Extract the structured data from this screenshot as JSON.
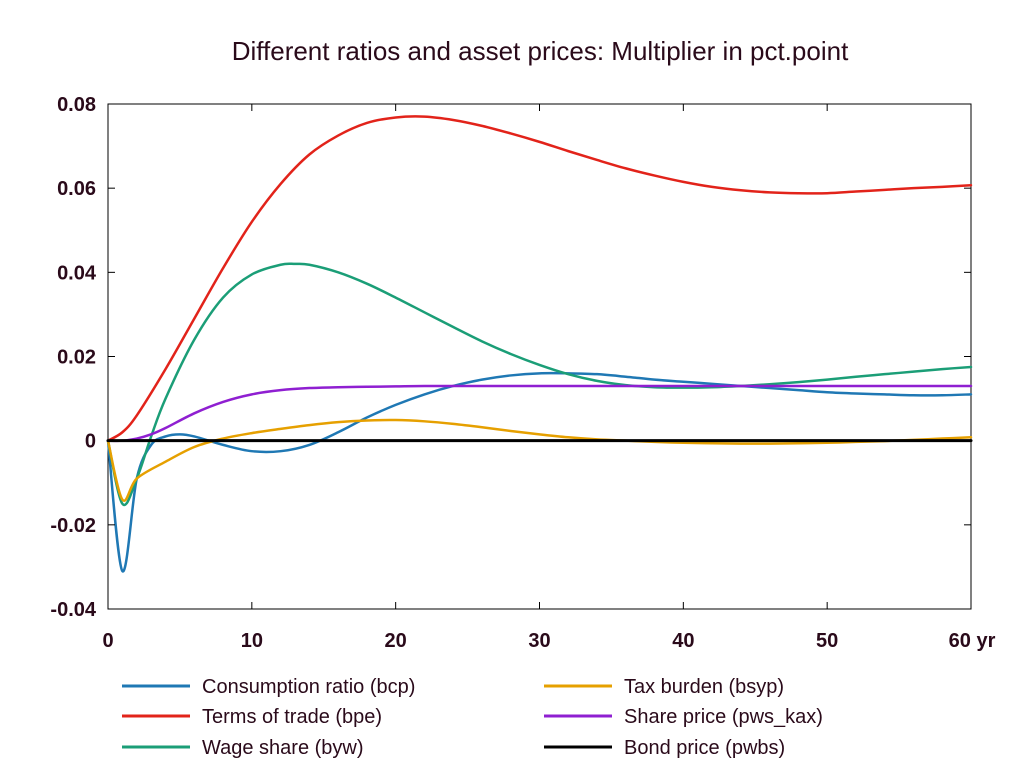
{
  "chart_data": {
    "type": "line",
    "title": "Different ratios and asset prices: Multiplier in pct.point",
    "xlabel": "",
    "ylabel": "",
    "xlim": [
      0,
      60
    ],
    "ylim": [
      -0.04,
      0.08
    ],
    "x_ticks": [
      0,
      10,
      20,
      30,
      40,
      50,
      60
    ],
    "x_tick_labels": [
      "0",
      "10",
      "20",
      "30",
      "40",
      "50",
      "60 yr"
    ],
    "y_ticks": [
      -0.04,
      -0.02,
      0,
      0.02,
      0.04,
      0.06,
      0.08
    ],
    "y_tick_labels": [
      "-0.04",
      "-0.02",
      "0",
      "0.02",
      "0.04",
      "0.06",
      "0.08"
    ],
    "grid": false,
    "legend_position": "bottom",
    "series": [
      {
        "name": "Consumption ratio (bcp)",
        "color": "#1f78b4",
        "x": [
          0,
          1,
          2,
          3,
          4,
          5,
          6,
          8,
          10,
          12,
          14,
          16,
          18,
          20,
          22,
          24,
          26,
          28,
          30,
          32,
          34,
          36,
          38,
          40,
          42,
          44,
          46,
          48,
          50,
          52,
          54,
          56,
          58,
          60
        ],
        "y": [
          0,
          -0.031,
          -0.009,
          -0.001,
          0.001,
          0.0015,
          0.001,
          -0.001,
          -0.0025,
          -0.0025,
          -0.001,
          0.002,
          0.0055,
          0.0085,
          0.011,
          0.013,
          0.0145,
          0.0155,
          0.016,
          0.016,
          0.0158,
          0.0152,
          0.0145,
          0.014,
          0.0135,
          0.013,
          0.0125,
          0.012,
          0.0115,
          0.0112,
          0.011,
          0.0108,
          0.0108,
          0.011
        ]
      },
      {
        "name": "Terms of trade (bpe)",
        "color": "#e2231a",
        "x": [
          0,
          1,
          2,
          4,
          6,
          8,
          10,
          12,
          14,
          16,
          18,
          20,
          22,
          24,
          26,
          28,
          30,
          32,
          34,
          36,
          38,
          40,
          42,
          44,
          46,
          48,
          50,
          52,
          54,
          56,
          58,
          60
        ],
        "y": [
          0,
          0.002,
          0.006,
          0.017,
          0.029,
          0.041,
          0.052,
          0.061,
          0.068,
          0.0725,
          0.0755,
          0.0768,
          0.077,
          0.0762,
          0.0748,
          0.073,
          0.071,
          0.0688,
          0.0667,
          0.0647,
          0.063,
          0.0615,
          0.0603,
          0.0595,
          0.059,
          0.0588,
          0.0588,
          0.0592,
          0.0596,
          0.06,
          0.0603,
          0.0607
        ]
      },
      {
        "name": "Wage share (byw)",
        "color": "#1b9e77",
        "x": [
          0,
          1,
          2,
          3,
          4,
          6,
          8,
          10,
          12,
          13,
          14,
          16,
          18,
          20,
          22,
          24,
          26,
          28,
          30,
          32,
          34,
          36,
          38,
          40,
          42,
          44,
          46,
          48,
          50,
          52,
          54,
          56,
          58,
          60
        ],
        "y": [
          0,
          -0.015,
          -0.009,
          0.001,
          0.01,
          0.024,
          0.034,
          0.0395,
          0.0418,
          0.042,
          0.0418,
          0.04,
          0.0373,
          0.034,
          0.0305,
          0.027,
          0.0236,
          0.0206,
          0.018,
          0.0158,
          0.0142,
          0.0132,
          0.0127,
          0.0126,
          0.0127,
          0.013,
          0.0134,
          0.0139,
          0.0145,
          0.0152,
          0.0158,
          0.0164,
          0.017,
          0.0175
        ]
      },
      {
        "name": "Tax burden (bsyp)",
        "color": "#e6a000",
        "x": [
          0,
          1,
          2,
          4,
          6,
          8,
          10,
          12,
          14,
          16,
          18,
          20,
          22,
          24,
          26,
          28,
          30,
          32,
          34,
          36,
          38,
          40,
          42,
          44,
          46,
          48,
          50,
          52,
          54,
          56,
          58,
          60
        ],
        "y": [
          0,
          -0.014,
          -0.009,
          -0.005,
          -0.0015,
          0.0005,
          0.0018,
          0.0028,
          0.0037,
          0.0044,
          0.0048,
          0.0049,
          0.0046,
          0.004,
          0.0032,
          0.0023,
          0.0015,
          0.0008,
          0.0003,
          0.0,
          -0.0003,
          -0.0005,
          -0.0006,
          -0.0007,
          -0.0007,
          -0.0006,
          -0.0005,
          -0.0003,
          -0.0001,
          0.0002,
          0.0005,
          0.0008
        ]
      },
      {
        "name": "Share price (pws_kax)",
        "color": "#8f1fd1",
        "x": [
          0,
          1,
          2,
          3,
          4,
          6,
          8,
          10,
          12,
          14,
          16,
          18,
          20,
          22,
          25,
          30,
          35,
          40,
          45,
          50,
          55,
          60
        ],
        "y": [
          0,
          0,
          0.0005,
          0.0015,
          0.003,
          0.0065,
          0.0092,
          0.011,
          0.012,
          0.0125,
          0.0127,
          0.0128,
          0.0129,
          0.013,
          0.013,
          0.013,
          0.013,
          0.013,
          0.013,
          0.013,
          0.013,
          0.013
        ]
      },
      {
        "name": "Bond price (pwbs)",
        "color": "#000000",
        "x": [
          0,
          60
        ],
        "y": [
          0,
          0
        ]
      }
    ]
  }
}
